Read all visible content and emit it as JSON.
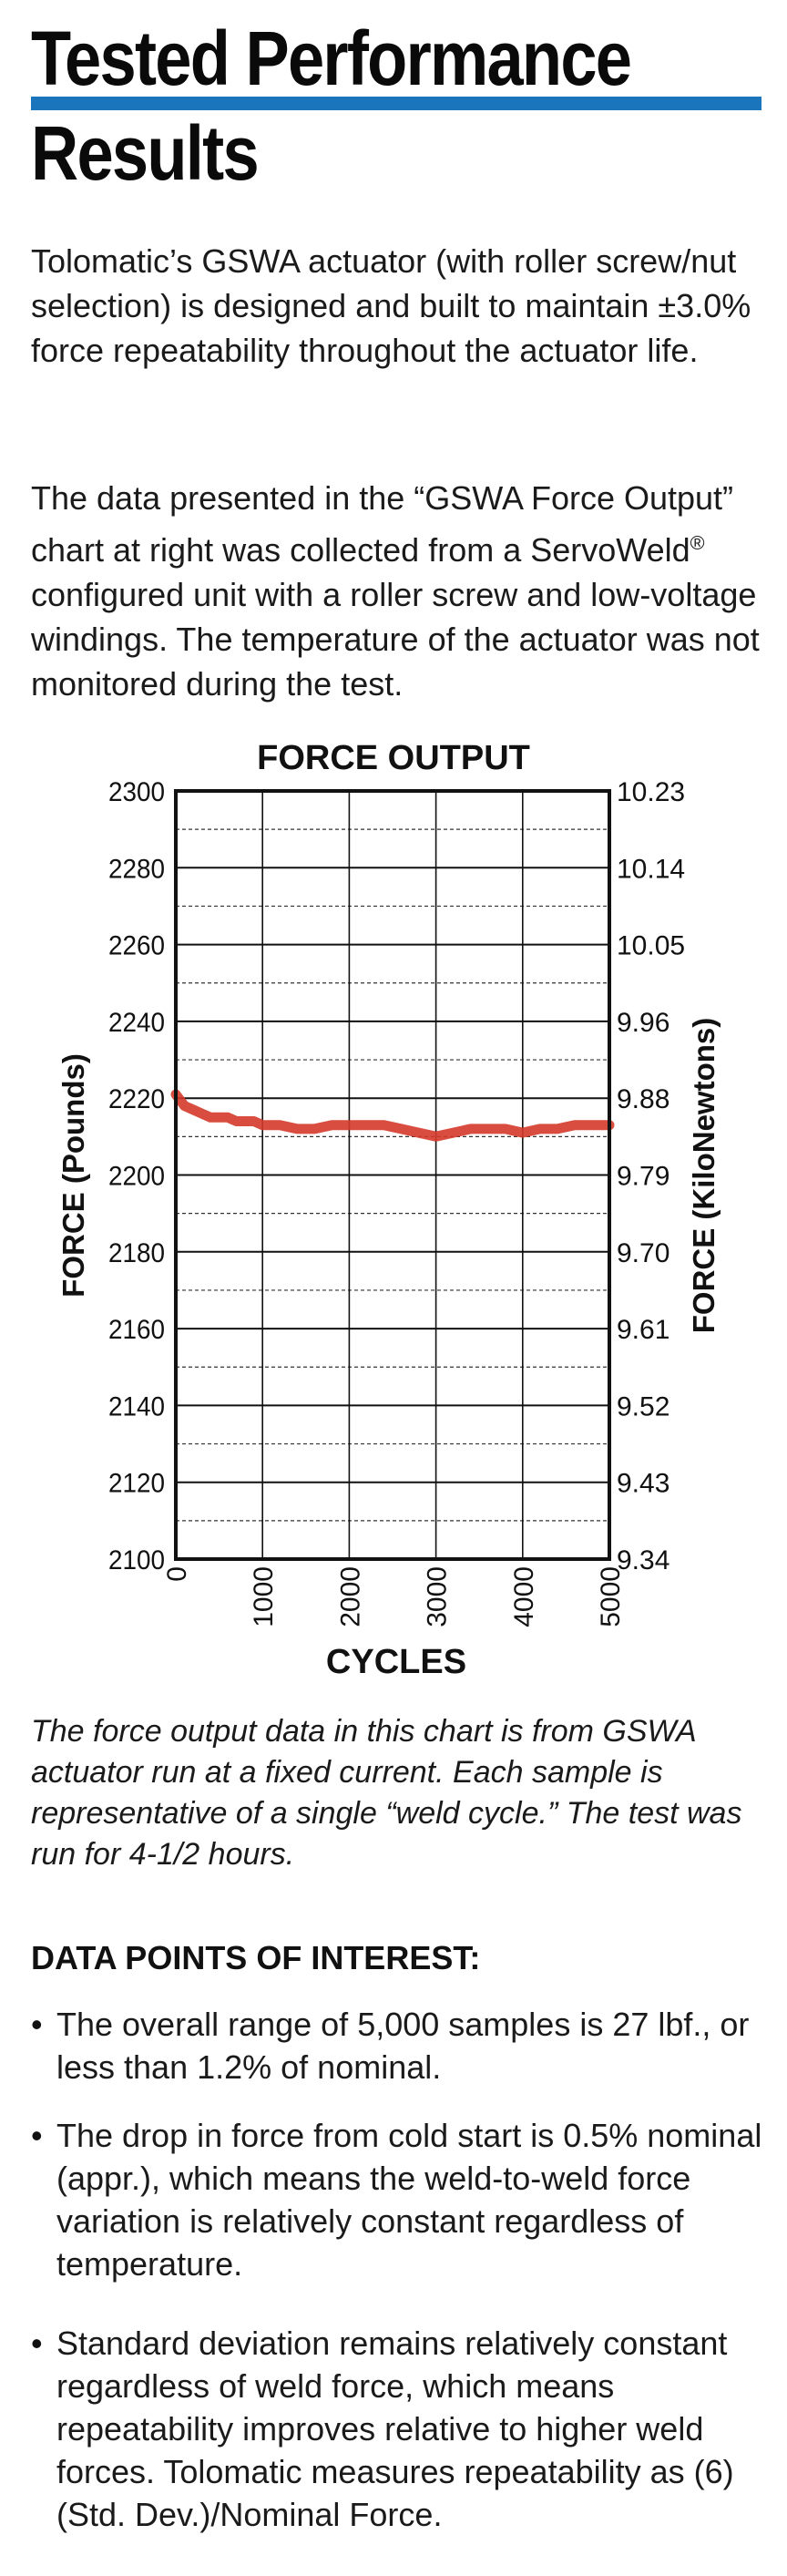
{
  "heading": {
    "line1": "Tested Performance",
    "line2": "Results",
    "rule_color": "#1a75bc"
  },
  "intro": {
    "p1": "Tolomatic’s GSWA actuator (with roller screw/nut selection) is designed and built to maintain ±3.0% force repeatability throughout the actuator life.",
    "p2_before": "The data presented in the “GSWA Force Output” chart at right was collected from a ServoWeld",
    "p2_reg": "®",
    "p2_after": " configured unit with a roller screw and low-voltage windings. The temperature of the actuator was not monitored during the test."
  },
  "chart_data": {
    "type": "line",
    "title": "FORCE OUTPUT",
    "xlabel": "CYCLES",
    "ylabel": "FORCE (Pounds)",
    "y2label": "FORCE (KiloNewtons)",
    "xlim": [
      0,
      5000
    ],
    "ylim": [
      2100,
      2300
    ],
    "x_ticks": [
      "0",
      "1000",
      "2000",
      "3000",
      "4000",
      "5000"
    ],
    "y_ticks": [
      "2300",
      "2280",
      "2260",
      "2240",
      "2220",
      "2200",
      "2180",
      "2160",
      "2140",
      "2120",
      "2100"
    ],
    "y2_ticks": [
      "10.23",
      "10.14",
      "10.05",
      "9.96",
      "9.88",
      "9.79",
      "9.70",
      "9.61",
      "9.52",
      "9.43",
      "9.34"
    ],
    "grid": true,
    "line_color": "#d43a2a",
    "series": [
      {
        "x": [
          0,
          100,
          200,
          300,
          400,
          500,
          600,
          700,
          800,
          900,
          1000,
          1200,
          1400,
          1600,
          1800,
          2000,
          2200,
          2400,
          2600,
          2800,
          3000,
          3200,
          3400,
          3600,
          3800,
          4000,
          4200,
          4400,
          4600,
          4800,
          5000
        ],
        "values": [
          2221,
          2218,
          2217,
          2216,
          2215,
          2215,
          2215,
          2214,
          2214,
          2214,
          2213,
          2213,
          2212,
          2212,
          2213,
          2213,
          2213,
          2213,
          2212,
          2211,
          2210,
          2211,
          2212,
          2212,
          2212,
          2211,
          2212,
          2212,
          2213,
          2213,
          2213
        ]
      }
    ]
  },
  "caption": "The force output data in this chart is from GSWA actuator run at a fixed current.  Each sample is representative of a single “weld cycle.”  The test was run for 4-1/2 hours.",
  "dpoi": {
    "heading": "DATA POINTS OF INTEREST:",
    "bullet_char": "•",
    "items": [
      "The overall range of 5,000 samples is 27 lbf., or less than 1.2% of nominal.",
      "The drop in force from cold start is 0.5% nominal (appr.), which means the weld-to-weld force variation is relatively constant regardless of temperature.",
      "Standard deviation remains relatively constant regardless of weld force, which means repeatability improves relative to higher weld forces.  Tolomatic measures repeatability as (6) (Std. Dev.)/Nominal Force."
    ]
  }
}
